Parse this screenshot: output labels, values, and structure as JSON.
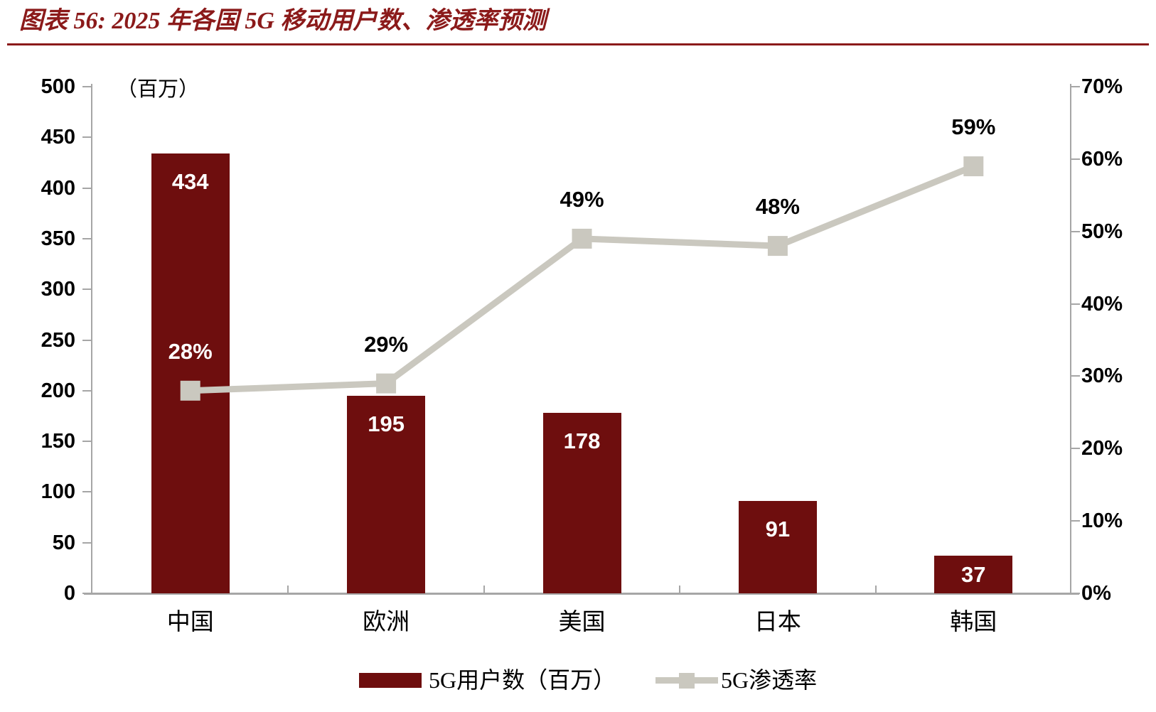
{
  "title": "图表 56: 2025 年各国 5G 移动用户数、渗透率预测",
  "chart_data": {
    "type": "bar",
    "subtype": "combo-bar-line-dual-axis",
    "categories": [
      "中国",
      "欧洲",
      "美国",
      "日本",
      "韩国"
    ],
    "series": [
      {
        "name": "5G用户数（百万）",
        "type": "bar",
        "axis": "left",
        "values": [
          434,
          195,
          178,
          91,
          37
        ],
        "data_labels": [
          "434",
          "195",
          "178",
          "91",
          "37"
        ]
      },
      {
        "name": "5G渗透率",
        "type": "line",
        "axis": "right",
        "values_percent": [
          28,
          29,
          49,
          48,
          59
        ],
        "data_labels": [
          "28%",
          "29%",
          "49%",
          "48%",
          "59%"
        ],
        "data_label_colors": [
          "#FFFFFF",
          "#000000",
          "#000000",
          "#000000",
          "#000000"
        ]
      }
    ],
    "left_axis": {
      "unit_label": "（百万）",
      "min": 0,
      "max": 500,
      "tick_labels": [
        "500",
        "450",
        "400",
        "350",
        "300",
        "250",
        "200",
        "150",
        "100",
        "50",
        "0"
      ]
    },
    "right_axis": {
      "min": 0,
      "max": 70,
      "tick_labels": [
        "70%",
        "60%",
        "50%",
        "40%",
        "30%",
        "20%",
        "10%",
        "0%"
      ]
    },
    "legend_position": "bottom",
    "grid": false
  },
  "colors": {
    "title": "#8B1A1A",
    "bar": "#6E0E0E",
    "line": "#CAC8BF",
    "axis": "#A6A6A6",
    "tick_text": "#000000",
    "bar_label_text": "#FFFFFF"
  }
}
